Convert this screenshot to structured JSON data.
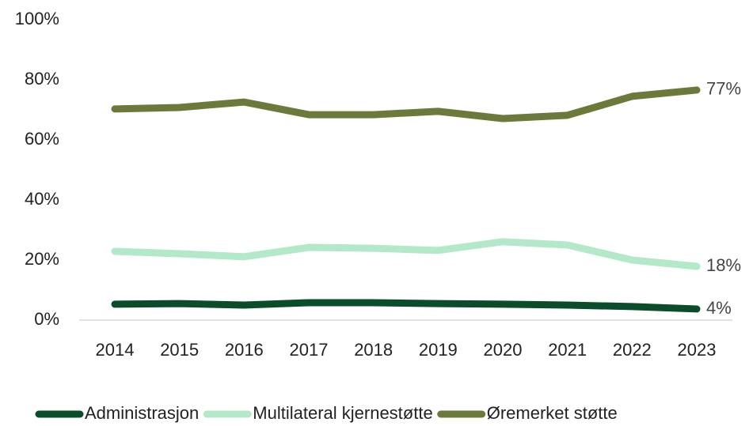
{
  "chart_data": {
    "type": "line",
    "categories": [
      "2014",
      "2015",
      "2016",
      "2017",
      "2018",
      "2019",
      "2020",
      "2021",
      "2022",
      "2023"
    ],
    "series": [
      {
        "name": "Administrasjon",
        "color": "#0b4d2a",
        "values": [
          5.3,
          5.5,
          5.0,
          5.8,
          5.8,
          5.5,
          5.3,
          5.0,
          4.5,
          3.7
        ],
        "value_labels": [
          null,
          null,
          null,
          null,
          null,
          null,
          null,
          null,
          null,
          "4%"
        ]
      },
      {
        "name": "Multilateral kjernestøtte",
        "color": "#b3e8c9",
        "values": [
          22.9,
          22.1,
          21.1,
          24.2,
          23.9,
          23.2,
          26.1,
          25.0,
          20.0,
          17.9
        ],
        "value_labels": [
          null,
          null,
          null,
          null,
          null,
          null,
          null,
          null,
          null,
          "18%"
        ]
      },
      {
        "name": "Øremerket støtte",
        "color": "#6b7a3a",
        "values": [
          70.3,
          70.8,
          72.6,
          68.4,
          68.4,
          69.5,
          67.1,
          68.2,
          74.5,
          76.6
        ],
        "value_labels": [
          null,
          null,
          null,
          null,
          null,
          null,
          null,
          null,
          null,
          "77%"
        ]
      }
    ],
    "ylim": [
      0,
      100
    ],
    "yticks": [
      {
        "value": 0,
        "label": "0%"
      },
      {
        "value": 20,
        "label": "20%"
      },
      {
        "value": 40,
        "label": "40%"
      },
      {
        "value": 60,
        "label": "60%"
      },
      {
        "value": 80,
        "label": "80%"
      },
      {
        "value": 100,
        "label": "100%"
      }
    ],
    "grid": false,
    "legend": "bottom"
  }
}
